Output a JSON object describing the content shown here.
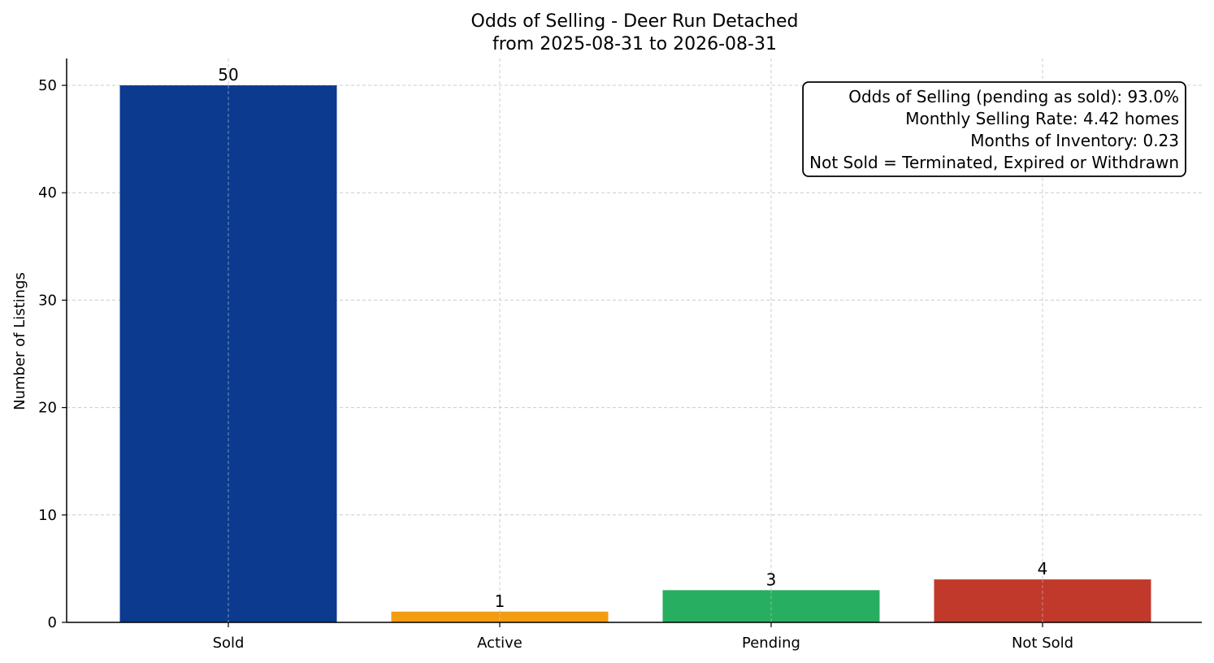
{
  "chart_data": {
    "type": "bar",
    "title": "Odds of Selling - Deer Run Detached",
    "subtitle": "from 2025-08-31 to 2026-08-31",
    "xlabel": "",
    "ylabel": "Number of Listings",
    "categories": [
      "Sold",
      "Active",
      "Pending",
      "Not Sold"
    ],
    "values": [
      50,
      1,
      3,
      4
    ],
    "colors": [
      "#0b3a8f",
      "#f39c12",
      "#27ae60",
      "#c0392b"
    ],
    "ylim": [
      0,
      52.5
    ],
    "yticks": [
      0,
      10,
      20,
      30,
      40,
      50
    ],
    "grid": true,
    "legend": "none",
    "annotation_box": {
      "placement": "top-right",
      "lines": [
        "Odds of Selling (pending as sold): 93.0%",
        "Monthly Selling Rate: 4.42 homes",
        "Months of Inventory: 0.23",
        "Not Sold = Terminated, Expired or Withdrawn"
      ]
    }
  }
}
